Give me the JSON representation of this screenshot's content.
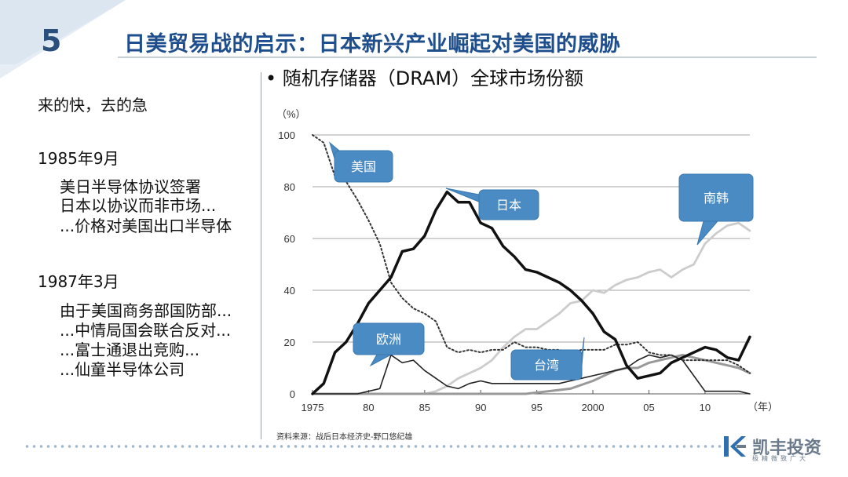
{
  "slide": {
    "number": "5",
    "title": "日美贸易战的启示：日本新兴产业崛起对美国的威胁"
  },
  "left_panel": {
    "line_summary": "来的快，去的急",
    "date1": "1985年9月",
    "date1_items": [
      "美日半导体协议签署",
      "日本以协议而非市场...",
      "...价格对美国出口半导体"
    ],
    "date2": "1987年3月",
    "date2_items": [
      "由于美国商务部国防部...",
      "...中情局国会联合反对...",
      "...富士通退出竞购...",
      "...仙童半导体公司"
    ]
  },
  "chart_title": "• 随机存储器（DRAM）全球市场份额",
  "source": "资料来源：战后日本经济史-野口悠纪雄",
  "logo": {
    "name": "凯丰投资",
    "slogan": "极精微致广大",
    "icon": "kf-logo-icon"
  },
  "colors": {
    "title_blue": "#1f4e8c",
    "callout_blue": "#4a8bc4",
    "usa": "#333333",
    "japan": "#111111",
    "europe": "#222222",
    "korea": "#cccccc",
    "taiwan": "#999999"
  },
  "chart_data": {
    "type": "line",
    "title": "",
    "ylabel": "（%）",
    "xlabel": "（年）",
    "ylim": [
      0,
      100
    ],
    "xlim": [
      1975,
      2014
    ],
    "yticks": [
      0,
      20,
      40,
      60,
      80,
      100
    ],
    "xticks": [
      {
        "v": 1975,
        "l": "1975"
      },
      {
        "v": 1980,
        "l": "80"
      },
      {
        "v": 1985,
        "l": "85"
      },
      {
        "v": 1990,
        "l": "90"
      },
      {
        "v": 1995,
        "l": "95"
      },
      {
        "v": 2000,
        "l": "2000"
      },
      {
        "v": 2005,
        "l": "05"
      },
      {
        "v": 2010,
        "l": "10"
      }
    ],
    "grid": true,
    "series": [
      {
        "name": "美国",
        "style": "dotted",
        "x": [
          1975,
          1976,
          1977,
          1978,
          1979,
          1980,
          1981,
          1982,
          1983,
          1984,
          1985,
          1986,
          1987,
          1988,
          1989,
          1990,
          1991,
          1992,
          1993,
          1994,
          1995,
          1996,
          1997,
          1998,
          1999,
          2000,
          2001,
          2002,
          2003,
          2004,
          2005,
          2006,
          2007,
          2008,
          2009,
          2010,
          2011,
          2012,
          2013,
          2014
        ],
        "y": [
          100,
          97,
          84,
          82,
          75,
          67,
          58,
          43,
          37,
          33,
          31,
          28,
          18,
          16,
          17,
          16,
          17,
          17,
          20,
          18,
          18,
          17,
          17,
          16,
          17,
          17,
          17,
          19,
          19,
          20,
          16,
          15,
          15,
          13,
          13,
          13,
          13,
          13,
          11,
          8
        ]
      },
      {
        "name": "日本",
        "style": "thick",
        "x": [
          1975,
          1976,
          1977,
          1978,
          1979,
          1980,
          1981,
          1982,
          1983,
          1984,
          1985,
          1986,
          1987,
          1988,
          1989,
          1990,
          1991,
          1992,
          1993,
          1994,
          1995,
          1996,
          1997,
          1998,
          1999,
          2000,
          2001,
          2002,
          2003,
          2004,
          2005,
          2006,
          2007,
          2008,
          2009,
          2010,
          2011,
          2012,
          2013,
          2014
        ],
        "y": [
          0,
          4,
          16,
          20,
          27,
          35,
          40,
          45,
          55,
          56,
          61,
          71,
          78,
          74,
          74,
          66,
          64,
          57,
          53,
          48,
          47,
          45,
          43,
          40,
          36,
          31,
          24,
          21,
          11,
          6,
          7,
          8,
          12,
          14,
          16,
          18,
          17,
          14,
          13,
          22
        ]
      },
      {
        "name": "欧洲",
        "style": "thin",
        "x": [
          1975,
          1976,
          1977,
          1978,
          1979,
          1980,
          1981,
          1982,
          1983,
          1984,
          1985,
          1986,
          1987,
          1988,
          1989,
          1990,
          1991,
          1992,
          1993,
          1994,
          1995,
          1996,
          1997,
          1998,
          1999,
          2000,
          2001,
          2002,
          2003,
          2004,
          2005,
          2006,
          2007,
          2008,
          2009,
          2010,
          2011,
          2012,
          2013,
          2014
        ],
        "y": [
          0,
          0,
          0,
          0,
          0,
          1,
          2,
          15,
          12,
          13,
          9,
          6,
          3,
          2,
          4,
          5,
          4,
          4,
          4,
          4,
          4,
          4,
          4,
          5,
          6,
          7,
          8,
          9,
          10,
          13,
          15,
          14,
          15,
          13,
          7,
          1,
          1,
          1,
          1,
          0
        ]
      },
      {
        "name": "南韩",
        "style": "light",
        "x": [
          1975,
          1980,
          1982,
          1984,
          1985,
          1986,
          1987,
          1988,
          1989,
          1990,
          1991,
          1992,
          1993,
          1994,
          1995,
          1996,
          1997,
          1998,
          1999,
          2000,
          2001,
          2002,
          2003,
          2004,
          2005,
          2006,
          2007,
          2008,
          2009,
          2010,
          2011,
          2012,
          2013,
          2014
        ],
        "y": [
          0,
          0,
          0,
          0,
          0,
          1,
          3,
          6,
          8,
          10,
          13,
          18,
          22,
          25,
          25,
          28,
          31,
          35,
          36,
          40,
          39,
          42,
          44,
          45,
          47,
          48,
          45,
          48,
          50,
          58,
          62,
          65,
          66,
          63
        ]
      },
      {
        "name": "台湾",
        "style": "gray",
        "x": [
          1975,
          1990,
          1994,
          1996,
          1998,
          2000,
          2001,
          2002,
          2003,
          2004,
          2005,
          2006,
          2007,
          2008,
          2009,
          2010,
          2011,
          2012,
          2013,
          2014
        ],
        "y": [
          0,
          0,
          0,
          1,
          2,
          5,
          7,
          9,
          10,
          10,
          12,
          13,
          14,
          15,
          14,
          13,
          12,
          11,
          10,
          8
        ]
      }
    ],
    "callouts": [
      {
        "label": "美国"
      },
      {
        "label": "日本"
      },
      {
        "label": "南韩"
      },
      {
        "label": "欧洲"
      },
      {
        "label": "台湾"
      }
    ]
  }
}
